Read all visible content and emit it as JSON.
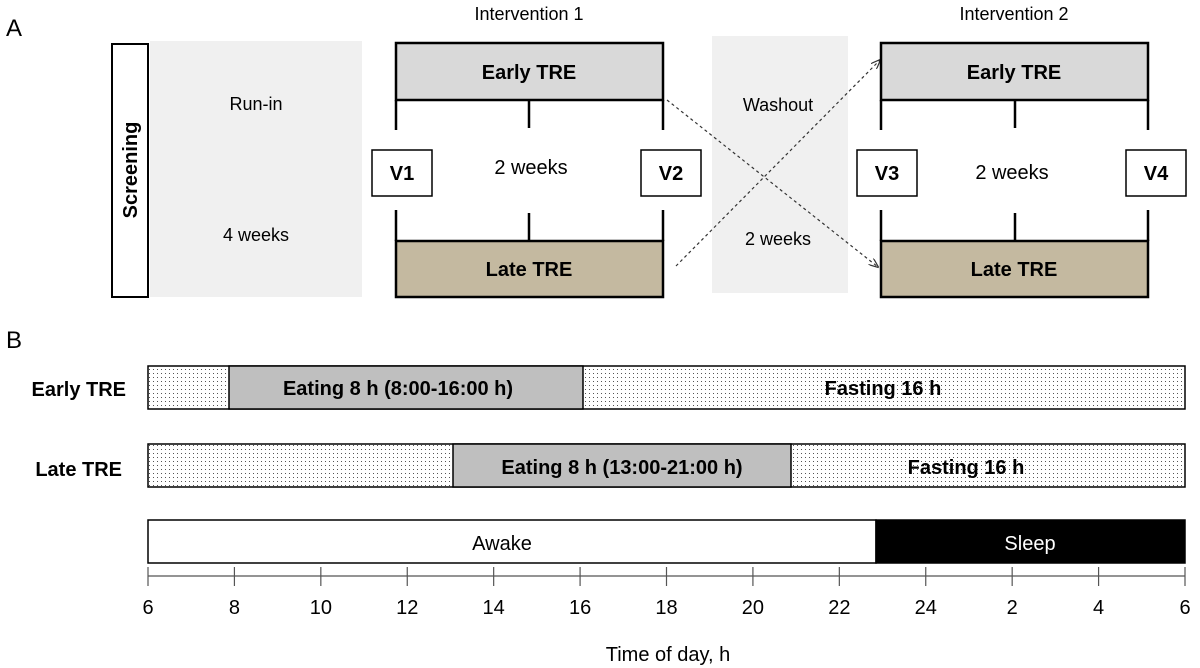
{
  "panel_a": {
    "panel_label": "A",
    "screening": "Screening",
    "runin": {
      "top": "Run-in",
      "bottom": "4 weeks"
    },
    "intervention1": {
      "title": "Intervention 1",
      "early": "Early TRE",
      "late": "Late TRE",
      "duration": "2 weeks",
      "visit_start": "V1",
      "visit_end": "V2"
    },
    "washout": {
      "top": "Washout",
      "bottom": "2 weeks"
    },
    "intervention2": {
      "title": "Intervention 2",
      "early": "Early TRE",
      "late": "Late TRE",
      "duration": "2 weeks",
      "visit_start": "V3",
      "visit_end": "V4"
    }
  },
  "panel_b": {
    "panel_label": "B",
    "early_row": {
      "label": "Early TRE",
      "eating": "Eating 8 h (8:00-16:00 h)",
      "fasting": "Fasting 16 h"
    },
    "late_row": {
      "label": "Late TRE",
      "eating": "Eating 8 h (13:00-21:00 h)",
      "fasting": "Fasting 16 h"
    },
    "awake": "Awake",
    "sleep": "Sleep",
    "axis": {
      "ticks": [
        "6",
        "8",
        "10",
        "12",
        "14",
        "16",
        "18",
        "20",
        "22",
        "24",
        "2",
        "4",
        "6"
      ],
      "xlabel": "Time of day, h"
    }
  },
  "colors": {
    "early_fill": "#d9d9d9",
    "late_fill": "#c4b9a0",
    "washout_fill": "#f0f0f0",
    "eating_fill": "#bfbfbf",
    "sleep_fill": "#000000"
  }
}
